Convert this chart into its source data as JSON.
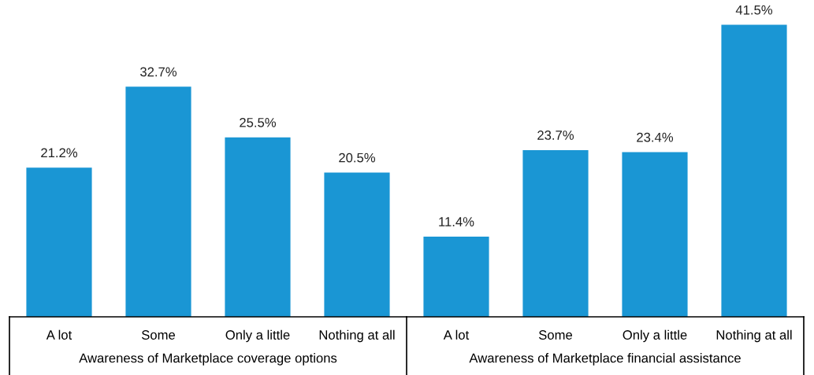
{
  "chart_data": [
    {
      "type": "bar",
      "xlabel": "Awareness of Marketplace coverage options",
      "categories": [
        "A lot",
        "Some",
        "Only a little",
        "Nothing at all"
      ],
      "values": [
        21.2,
        32.7,
        25.5,
        20.5
      ],
      "value_labels": [
        "21.2%",
        "32.7%",
        "25.5%",
        "20.5%"
      ],
      "color": "#1a96d4",
      "tick_labels": "x"
    },
    {
      "type": "bar",
      "xlabel": "Awareness of Marketplace financial assistance",
      "categories": [
        "A lot",
        "Some",
        "Only a little",
        "Nothing at all"
      ],
      "values": [
        11.4,
        23.7,
        23.4,
        41.5
      ],
      "value_labels": [
        "11.4%",
        "23.7%",
        "23.4%",
        "41.5%"
      ],
      "color": "#1a96d4",
      "tick_labels": "x"
    }
  ]
}
